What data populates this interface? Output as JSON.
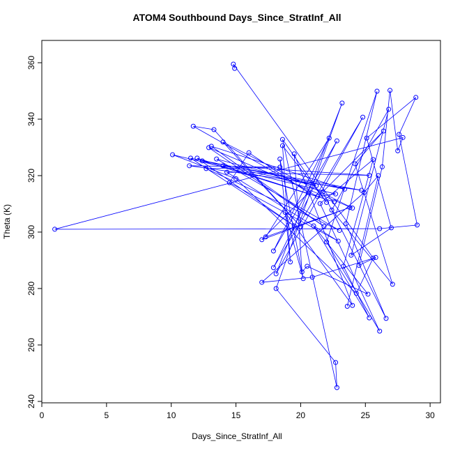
{
  "chart_data": {
    "type": "scatter-line",
    "title": "ATOM4 Southbound Days_Since_StratInf_All",
    "x_label": "Days_Since_StratInf_All",
    "y_label": "Theta (K)",
    "color": "#0000ff",
    "xlim": [
      0,
      30.8
    ],
    "ylim": [
      239.5,
      367.9
    ],
    "xticks": [
      0,
      5,
      10,
      15,
      20,
      25,
      30
    ],
    "yticks": [
      240,
      260,
      280,
      300,
      320,
      340,
      360
    ],
    "x": [
      14.9,
      14.8,
      25.6,
      24.3,
      15.0,
      10.1,
      22.7,
      21.3,
      11.7,
      13.3,
      20.0,
      14.0,
      24.0,
      12.9,
      21.8,
      13.1,
      23.4,
      11.5,
      19.5,
      12.0,
      22.6,
      12.4,
      24.7,
      11.4,
      18.4,
      12.7,
      23.0,
      13.5,
      21.2,
      14.0,
      25.3,
      14.3,
      22.9,
      14.5,
      16.0,
      20.6,
      17.0,
      23.8,
      17.3,
      22.2,
      17.9,
      22.8,
      17.9,
      24.8,
      18.1,
      23.2,
      18.1,
      22.7,
      22.8,
      18.6,
      22.0,
      18.6,
      19.2,
      18.4,
      20.2,
      18.8,
      24.0,
      19.5,
      20.1,
      20.5,
      25.2,
      21.0,
      25.3,
      23.3,
      25.6,
      21.5,
      26.1,
      22.0,
      25.9,
      23.5,
      26.6,
      21.7,
      26.4,
      24.2,
      27.1,
      22.4,
      26.8,
      23.9,
      27.0,
      25.1,
      28.9,
      27.6,
      29.0,
      26.1,
      1.0,
      27.9,
      27.5,
      26.9,
      26.3,
      24.5,
      25.8,
      20.9,
      17.0,
      24.9,
      26.0,
      23.6
    ],
    "y": [
      358.0,
      359.5,
      290.8,
      278.3,
      318.9,
      327.4,
      313.5,
      312.6,
      337.5,
      336.3,
      301.9,
      331.9,
      308.5,
      329.9,
      302.0,
      330.4,
      315.2,
      326.2,
      302.2,
      326.2,
      310.7,
      325.2,
      314.8,
      323.5,
      323.0,
      322.5,
      300.6,
      325.9,
      316.4,
      323.5,
      320.1,
      321.2,
      296.8,
      317.5,
      328.1,
      313.9,
      297.3,
      308.7,
      298.3,
      333.3,
      293.3,
      332.3,
      287.4,
      340.7,
      285.2,
      345.7,
      280.0,
      253.8,
      244.9,
      332.8,
      310.5,
      330.6,
      289.4,
      325.9,
      283.5,
      307.0,
      274.0,
      327.7,
      285.9,
      287.9,
      278.0,
      302.2,
      269.6,
      287.9,
      325.7,
      310.1,
      264.9,
      296.5,
      349.9,
      303.0,
      269.4,
      314.2,
      335.8,
      324.2,
      281.5,
      307.8,
      343.5,
      291.8,
      301.5,
      333.3,
      347.7,
      334.6,
      302.5,
      301.2,
      301.0,
      333.5,
      328.8,
      350.2,
      323.1,
      288.2,
      291.0,
      284.0,
      282.2,
      314.0,
      320.0,
      273.7
    ]
  }
}
